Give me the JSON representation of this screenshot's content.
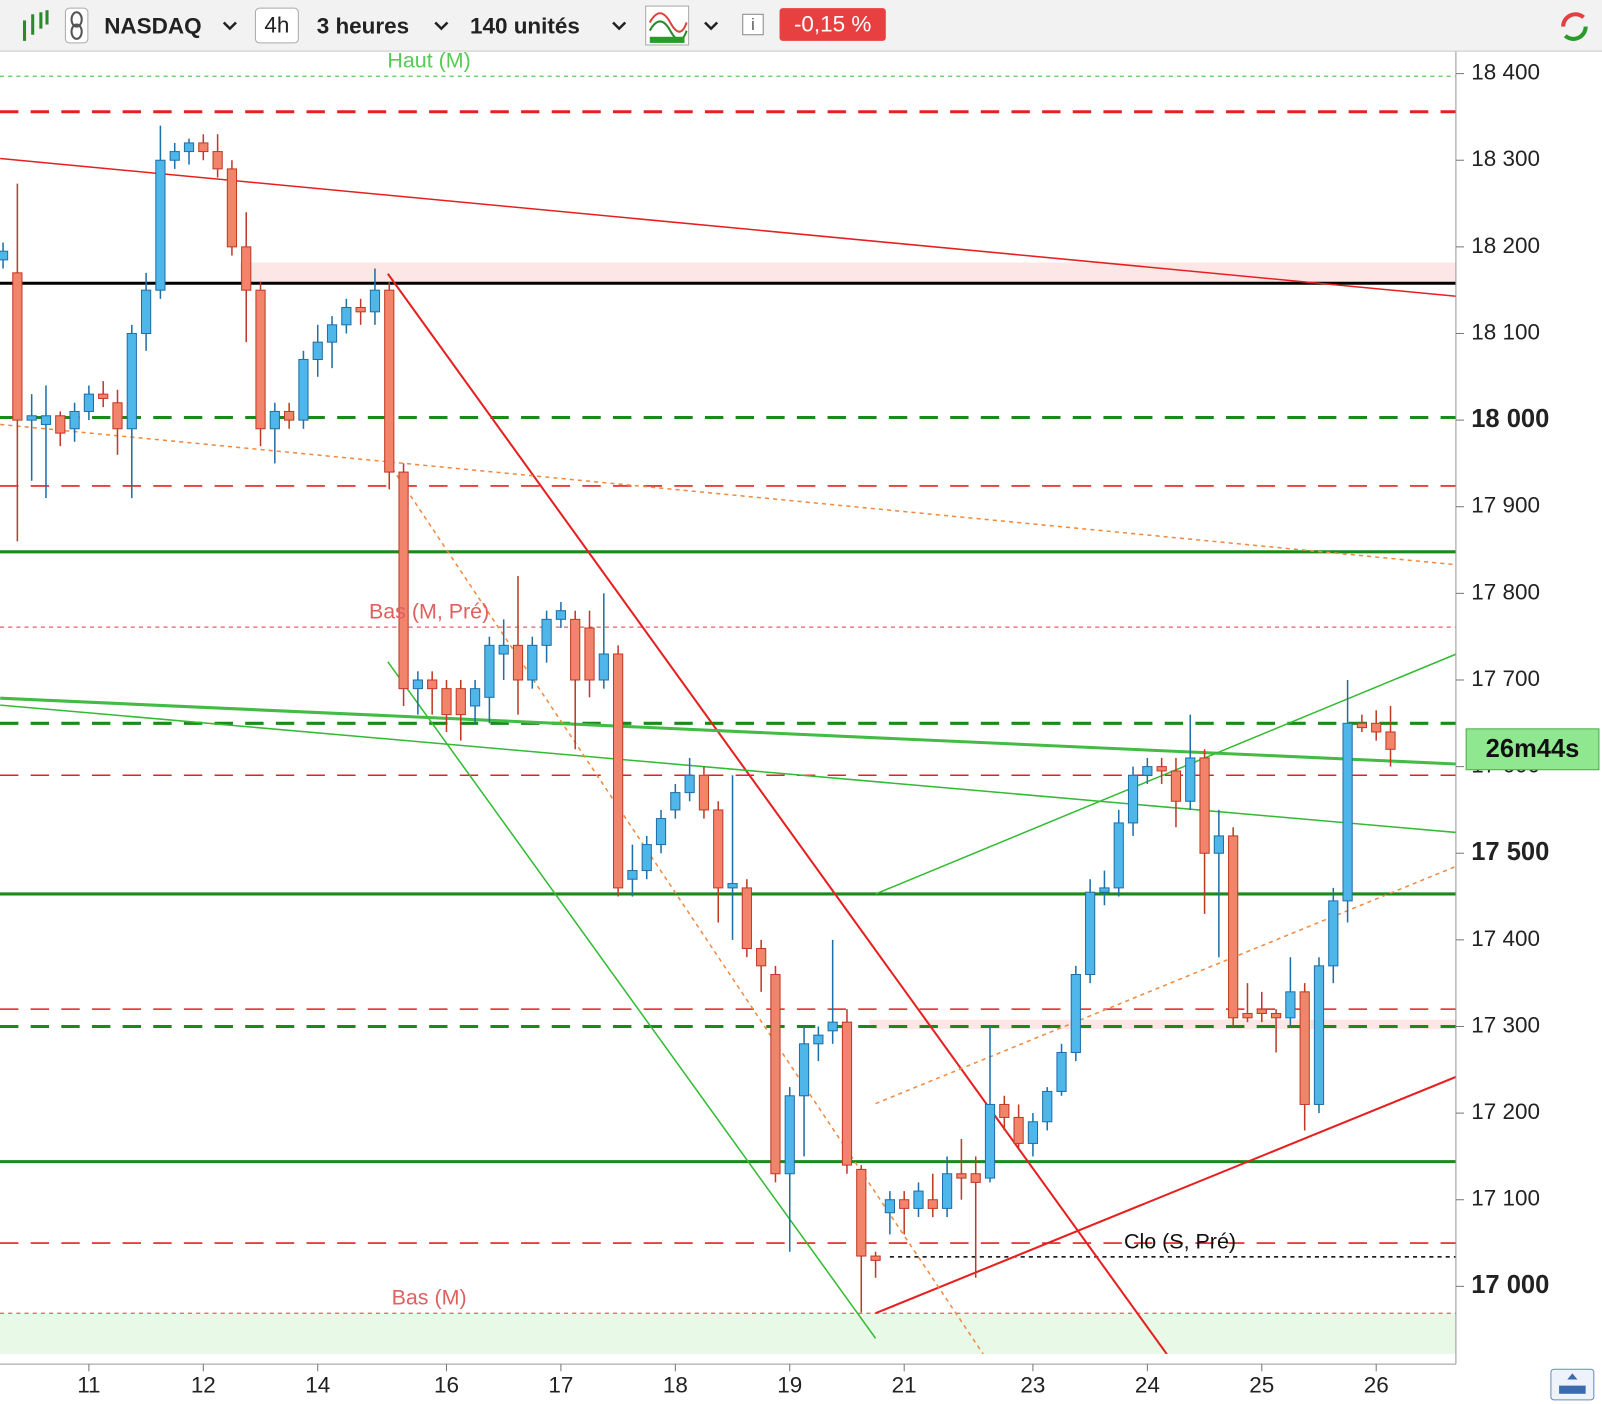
{
  "toolbar": {
    "symbol": "NASDAQ",
    "interval": "4h",
    "period": "3 heures",
    "units": "140 unités",
    "change": "-0,15 %"
  },
  "chart_data": {
    "type": "candlestick",
    "up_color": "#4fb6ea",
    "down_color": "#f2846c",
    "ylim": [
      16922,
      18426
    ],
    "yticks": [
      {
        "value": 17000,
        "label": "17 000",
        "bold": true
      },
      {
        "value": 17100,
        "label": "17 100"
      },
      {
        "value": 17200,
        "label": "17 200"
      },
      {
        "value": 17300,
        "label": "17 300"
      },
      {
        "value": 17400,
        "label": "17 400"
      },
      {
        "value": 17500,
        "label": "17 500",
        "bold": true
      },
      {
        "value": 17600,
        "label": "17 600"
      },
      {
        "value": 17700,
        "label": "17 700"
      },
      {
        "value": 17800,
        "label": "17 800"
      },
      {
        "value": 17900,
        "label": "17 900"
      },
      {
        "value": 18000,
        "label": "18 000",
        "bold": true
      },
      {
        "value": 18100,
        "label": "18 100"
      },
      {
        "value": 18200,
        "label": "18 200"
      },
      {
        "value": 18300,
        "label": "18 300"
      },
      {
        "value": 18400,
        "label": "18 400"
      }
    ],
    "categories": [
      null,
      null,
      null,
      null,
      null,
      null,
      "11",
      null,
      null,
      null,
      null,
      null,
      null,
      null,
      "12",
      null,
      null,
      null,
      null,
      null,
      null,
      null,
      "14",
      null,
      null,
      null,
      null,
      null,
      null,
      null,
      null,
      "16",
      null,
      null,
      null,
      null,
      null,
      null,
      null,
      "17",
      null,
      null,
      null,
      null,
      null,
      null,
      null,
      "18",
      null,
      null,
      null,
      null,
      null,
      null,
      null,
      "19",
      null,
      null,
      null,
      null,
      null,
      null,
      null,
      "21",
      null,
      null,
      null,
      null,
      null,
      null,
      null,
      null,
      "23",
      null,
      null,
      null,
      null,
      null,
      null,
      null,
      "24",
      null,
      null,
      null,
      null,
      null,
      null,
      null,
      "25",
      null,
      null,
      null,
      null,
      null,
      null,
      null,
      "26",
      null
    ],
    "ohlc": [
      [
        18185,
        18205,
        18175,
        18195
      ],
      [
        18170,
        18273,
        17860,
        18000
      ],
      [
        18000,
        18030,
        17930,
        18005
      ],
      [
        17995,
        18040,
        17910,
        18005
      ],
      [
        18005,
        18010,
        17970,
        17985
      ],
      [
        17990,
        18020,
        17975,
        18010
      ],
      [
        18010,
        18040,
        18000,
        18030
      ],
      [
        18030,
        18045,
        18015,
        18025
      ],
      [
        18020,
        18035,
        17960,
        17990
      ],
      [
        17990,
        18110,
        17910,
        18100
      ],
      [
        18100,
        18170,
        18080,
        18150
      ],
      [
        18150,
        18340,
        18140,
        18300
      ],
      [
        18300,
        18320,
        18290,
        18310
      ],
      [
        18310,
        18325,
        18295,
        18320
      ],
      [
        18320,
        18330,
        18300,
        18310
      ],
      [
        18310,
        18330,
        18280,
        18290
      ],
      [
        18290,
        18300,
        18190,
        18200
      ],
      [
        18200,
        18240,
        18090,
        18150
      ],
      [
        18150,
        18160,
        17970,
        17990
      ],
      [
        17990,
        18020,
        17950,
        18010
      ],
      [
        18010,
        18020,
        17990,
        18000
      ],
      [
        18000,
        18080,
        17990,
        18070
      ],
      [
        18070,
        18110,
        18050,
        18090
      ],
      [
        18090,
        18120,
        18060,
        18110
      ],
      [
        18110,
        18140,
        18100,
        18130
      ],
      [
        18130,
        18140,
        18110,
        18125
      ],
      [
        18125,
        18175,
        18110,
        18150
      ],
      [
        18150,
        18160,
        17920,
        17940
      ],
      [
        17940,
        17950,
        17670,
        17690
      ],
      [
        17690,
        17710,
        17660,
        17700
      ],
      [
        17700,
        17710,
        17660,
        17690
      ],
      [
        17690,
        17700,
        17640,
        17660
      ],
      [
        17690,
        17700,
        17630,
        17660
      ],
      [
        17670,
        17700,
        17650,
        17690
      ],
      [
        17680,
        17750,
        17650,
        17740
      ],
      [
        17730,
        17770,
        17700,
        17740
      ],
      [
        17740,
        17820,
        17660,
        17700
      ],
      [
        17700,
        17750,
        17690,
        17740
      ],
      [
        17740,
        17780,
        17720,
        17770
      ],
      [
        17770,
        17790,
        17760,
        17780
      ],
      [
        17770,
        17780,
        17620,
        17700
      ],
      [
        17760,
        17780,
        17680,
        17700
      ],
      [
        17700,
        17800,
        17690,
        17730
      ],
      [
        17730,
        17740,
        17450,
        17460
      ],
      [
        17470,
        17510,
        17450,
        17480
      ],
      [
        17480,
        17520,
        17470,
        17510
      ],
      [
        17510,
        17550,
        17500,
        17540
      ],
      [
        17550,
        17580,
        17540,
        17570
      ],
      [
        17570,
        17610,
        17560,
        17590
      ],
      [
        17590,
        17600,
        17540,
        17550
      ],
      [
        17550,
        17560,
        17420,
        17460
      ],
      [
        17460,
        17590,
        17400,
        17465
      ],
      [
        17460,
        17470,
        17380,
        17390
      ],
      [
        17390,
        17400,
        17340,
        17370
      ],
      [
        17360,
        17370,
        17120,
        17130
      ],
      [
        17130,
        17230,
        17040,
        17220
      ],
      [
        17220,
        17300,
        17150,
        17280
      ],
      [
        17280,
        17300,
        17260,
        17290
      ],
      [
        17295,
        17400,
        17280,
        17305
      ],
      [
        17305,
        17320,
        17130,
        17140
      ],
      [
        17135,
        17140,
        16970,
        17035
      ],
      [
        17035,
        17040,
        17010,
        17030
      ],
      [
        17085,
        17110,
        17060,
        17100
      ],
      [
        17100,
        17110,
        17060,
        17090
      ],
      [
        17090,
        17120,
        17080,
        17110
      ],
      [
        17100,
        17130,
        17080,
        17090
      ],
      [
        17090,
        17150,
        17080,
        17130
      ],
      [
        17130,
        17170,
        17100,
        17125
      ],
      [
        17130,
        17150,
        17010,
        17120
      ],
      [
        17125,
        17300,
        17120,
        17210
      ],
      [
        17210,
        17220,
        17180,
        17195
      ],
      [
        17195,
        17210,
        17160,
        17165
      ],
      [
        17165,
        17200,
        17150,
        17190
      ],
      [
        17190,
        17230,
        17180,
        17225
      ],
      [
        17225,
        17280,
        17220,
        17270
      ],
      [
        17270,
        17370,
        17260,
        17360
      ],
      [
        17360,
        17470,
        17350,
        17455
      ],
      [
        17455,
        17480,
        17440,
        17460
      ],
      [
        17460,
        17550,
        17450,
        17535
      ],
      [
        17535,
        17600,
        17520,
        17590
      ],
      [
        17590,
        17610,
        17580,
        17600
      ],
      [
        17600,
        17610,
        17580,
        17595
      ],
      [
        17595,
        17610,
        17530,
        17560
      ],
      [
        17560,
        17660,
        17550,
        17610
      ],
      [
        17610,
        17620,
        17430,
        17500
      ],
      [
        17500,
        17550,
        17380,
        17520
      ],
      [
        17520,
        17530,
        17300,
        17310
      ],
      [
        17315,
        17350,
        17305,
        17310
      ],
      [
        17320,
        17340,
        17305,
        17315
      ],
      [
        17315,
        17320,
        17270,
        17310
      ],
      [
        17310,
        17380,
        17300,
        17340
      ],
      [
        17340,
        17350,
        17180,
        17210
      ],
      [
        17210,
        17380,
        17200,
        17370
      ],
      [
        17370,
        17460,
        17350,
        17445
      ],
      [
        17445,
        17700,
        17420,
        17650
      ],
      [
        17650,
        17660,
        17640,
        17645
      ],
      [
        17650,
        17665,
        17630,
        17640
      ],
      [
        17640,
        17670,
        17600,
        17620
      ]
    ],
    "bands": [
      {
        "from": 18158,
        "to": 18182,
        "color": "#fde6e6",
        "start": 17
      },
      {
        "from": 17297,
        "to": 17308,
        "color": "#fde6e6",
        "start": 61
      },
      {
        "from": 16922,
        "to": 16969,
        "color": "#e8f9e8",
        "start": 0
      }
    ],
    "levels": [
      {
        "value": 18397,
        "color": "#55cc55",
        "style": "dotted",
        "width": 1.2,
        "label": "Haut (M)"
      },
      {
        "value": 18356,
        "color": "#e62020",
        "style": "dashed",
        "width": 3
      },
      {
        "value": 18158,
        "color": "#000000",
        "style": "solid",
        "width": 3
      },
      {
        "value": 18003,
        "color": "#1a8a1a",
        "style": "dashed",
        "width": 3
      },
      {
        "value": 17924,
        "color": "#e62020",
        "style": "dashed",
        "width": 1.5
      },
      {
        "value": 17848,
        "color": "#1a8a1a",
        "style": "solid",
        "width": 3
      },
      {
        "value": 17761,
        "color": "#e06060",
        "style": "dotted",
        "width": 1.2,
        "label": "Bas (M, Pré)"
      },
      {
        "value": 17650,
        "color": "#1a8a1a",
        "style": "dashed",
        "width": 3
      },
      {
        "value": 17590,
        "color": "#e62020",
        "style": "dashed",
        "width": 1.5
      },
      {
        "value": 17453,
        "color": "#1a8a1a",
        "style": "solid",
        "width": 3
      },
      {
        "value": 17320,
        "color": "#e62020",
        "style": "dashed",
        "width": 1.5
      },
      {
        "value": 17300,
        "color": "#1a8a1a",
        "style": "dashed",
        "width": 3
      },
      {
        "value": 17144,
        "color": "#1a8a1a",
        "style": "solid",
        "width": 3
      },
      {
        "value": 17050,
        "color": "#e62020",
        "style": "dashed",
        "width": 1.5
      },
      {
        "value": 17034,
        "color": "#000000",
        "style": "dotted",
        "width": 1.5,
        "label": "Clo (S, Pré)",
        "start": 62
      },
      {
        "value": 16969,
        "color": "#e06060",
        "style": "dotted",
        "width": 1.2,
        "label": "Bas (M)"
      }
    ],
    "trendlines": [
      {
        "x1": -0.2,
        "y1": 18302,
        "x2": 101.6,
        "y2": 18143,
        "color": "#e62020",
        "width": 1.5,
        "style": "solid"
      },
      {
        "x1": 26.9,
        "y1": 18169,
        "x2": 81.7,
        "y2": 16914,
        "color": "#e62020",
        "width": 2,
        "style": "solid"
      },
      {
        "x1": 61,
        "y1": 16969,
        "x2": 101.6,
        "y2": 17242,
        "color": "#e62020",
        "width": 2,
        "style": "solid"
      },
      {
        "x1": 26.9,
        "y1": 17721,
        "x2": 61,
        "y2": 16940,
        "color": "#33bb33",
        "width": 1.5,
        "style": "solid"
      },
      {
        "x1": -0.2,
        "y1": 17679,
        "x2": 101.6,
        "y2": 17603,
        "color": "#44bb44",
        "width": 3,
        "style": "solid"
      },
      {
        "x1": -0.2,
        "y1": 17671,
        "x2": 101.6,
        "y2": 17524,
        "color": "#33bb33",
        "width": 1.5,
        "style": "solid"
      },
      {
        "x1": 61,
        "y1": 17453,
        "x2": 101.6,
        "y2": 17730,
        "color": "#33bb33",
        "width": 1.5,
        "style": "solid"
      },
      {
        "x1": -0.2,
        "y1": 17995,
        "x2": 101.6,
        "y2": 17833,
        "color": "#f08a40",
        "width": 1.5,
        "style": "dotted"
      },
      {
        "x1": 26.9,
        "y1": 17952,
        "x2": 69,
        "y2": 16910,
        "color": "#f08a40",
        "width": 1.5,
        "style": "dotted"
      },
      {
        "x1": 61,
        "y1": 17211,
        "x2": 101.6,
        "y2": 17485,
        "color": "#f08a40",
        "width": 1.5,
        "style": "dotted"
      }
    ],
    "timer": {
      "label": "26m44s",
      "value": 17620
    }
  }
}
